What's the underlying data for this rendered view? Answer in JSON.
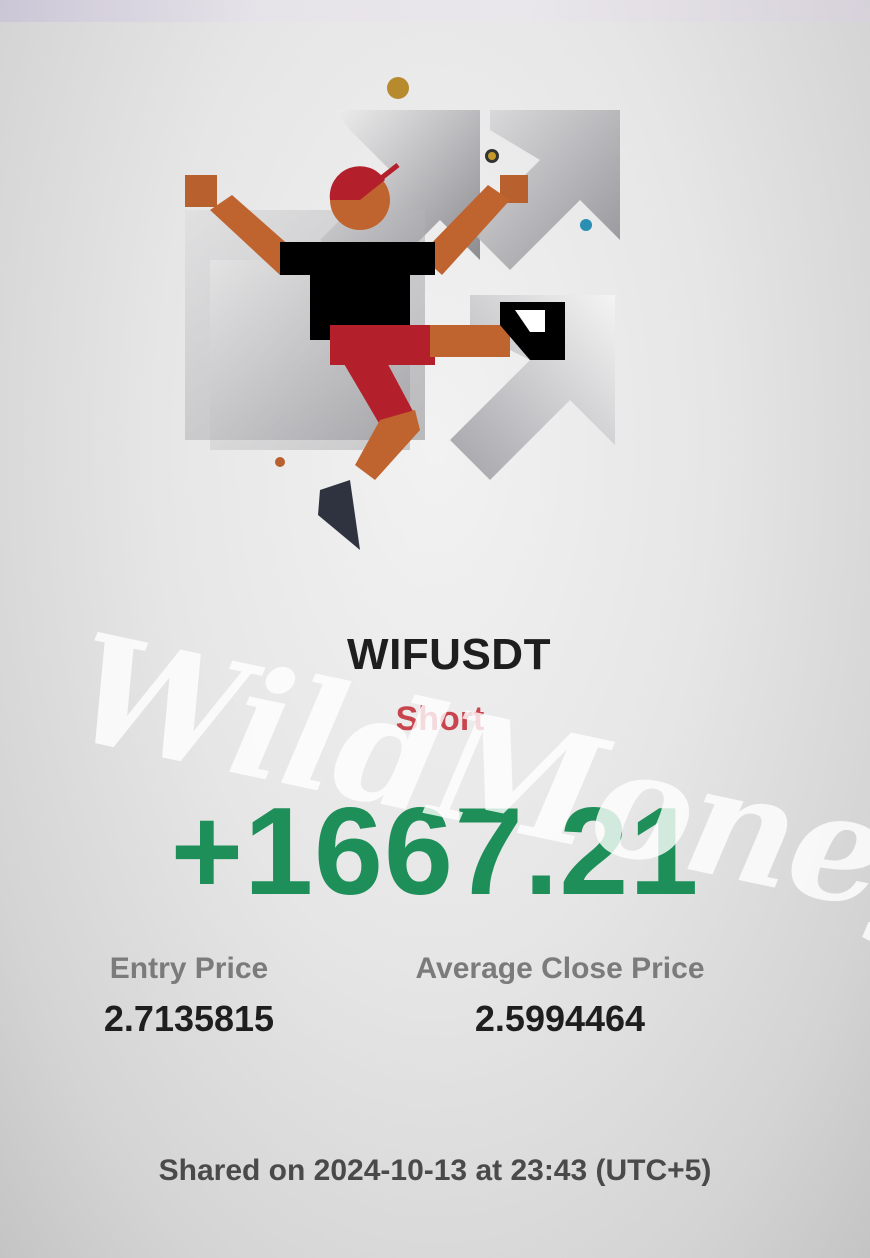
{
  "trade": {
    "symbol": "WIFUSDT",
    "side": "Short",
    "pnl": "+1667.21"
  },
  "stats": {
    "entry_label": "Entry Price",
    "entry_value": "2.7135815",
    "close_label": "Average Close Price",
    "close_value": "2.5994464"
  },
  "footer": {
    "shared_text": "Shared on 2024-10-13 at 23:43 (UTC+5)"
  },
  "watermark": "WildMoneyPro",
  "illustration": {
    "icon": "jumping-figure-with-arrows-illustration"
  },
  "colors": {
    "pnl_positive": "#1f8f5a",
    "side_short": "#c8454f",
    "accent_orange": "#b9602f",
    "figure_black": "#000000",
    "figure_red": "#b3202c"
  }
}
